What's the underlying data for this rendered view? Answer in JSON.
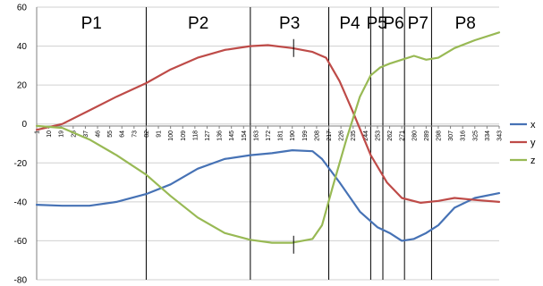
{
  "chart_data": {
    "type": "line",
    "title": "",
    "xlabel": "",
    "ylabel": "",
    "xlim": [
      1,
      343
    ],
    "ylim": [
      -80,
      60
    ],
    "y_ticks": [
      60,
      40,
      20,
      0,
      -20,
      -40,
      -60,
      -80
    ],
    "y_tick_labels": [
      "60",
      "40",
      "20",
      "0",
      "-20",
      "-40",
      "-60",
      "-80"
    ],
    "x_tick_labels": [
      "1",
      "10",
      "19",
      "28",
      "37",
      "46",
      "55",
      "64",
      "73",
      "82",
      "91",
      "100",
      "109",
      "118",
      "127",
      "136",
      "145",
      "154",
      "163",
      "172",
      "181",
      "190",
      "199",
      "208",
      "217",
      "226",
      "235",
      "244",
      "253",
      "262",
      "271",
      "280",
      "289",
      "298",
      "307",
      "316",
      "325",
      "334",
      "343"
    ],
    "grid": "horizontal",
    "legend_position": "right",
    "phases": [
      {
        "label": "P1",
        "start": 1,
        "end": 82
      },
      {
        "label": "P2",
        "start": 82,
        "end": 159
      },
      {
        "label": "P3",
        "start": 159,
        "end": 217
      },
      {
        "label": "P4",
        "start": 217,
        "end": 248
      },
      {
        "label": "P5",
        "start": 248,
        "end": 257
      },
      {
        "label": "P6",
        "start": 257,
        "end": 273
      },
      {
        "label": "P7",
        "start": 273,
        "end": 293
      },
      {
        "label": "P8",
        "start": 293,
        "end": 343
      }
    ],
    "markers": [
      {
        "x": 191,
        "y": 39
      },
      {
        "x": 191,
        "y": -62
      }
    ],
    "series": [
      {
        "name": "x",
        "color": "#4672B5",
        "x": [
          1,
          20,
          40,
          60,
          82,
          100,
          120,
          140,
          159,
          175,
          190,
          205,
          212,
          225,
          240,
          253,
          262,
          271,
          280,
          289,
          298,
          310,
          325,
          343
        ],
        "y": [
          -41.5,
          -42,
          -42,
          -40,
          -36,
          -31,
          -23,
          -18,
          -16,
          -15,
          -13.5,
          -14,
          -18,
          -30,
          -45,
          -53,
          -56,
          -60,
          -59,
          -56,
          -52,
          -43,
          -38,
          -35.5
        ]
      },
      {
        "name": "y",
        "color": "#BE4B48",
        "x": [
          1,
          20,
          40,
          60,
          82,
          100,
          120,
          140,
          159,
          172,
          190,
          205,
          215,
          225,
          235,
          248,
          260,
          271,
          285,
          298,
          310,
          325,
          343
        ],
        "y": [
          -3,
          0,
          7,
          14,
          21,
          28,
          34,
          38,
          40,
          40.5,
          39,
          37,
          34,
          22,
          6,
          -16,
          -30,
          -38,
          -40.5,
          -39.5,
          -38,
          -39,
          -40
        ]
      },
      {
        "name": "z",
        "color": "#98B954",
        "x": [
          1,
          20,
          40,
          60,
          82,
          100,
          120,
          140,
          159,
          175,
          190,
          205,
          212,
          220,
          230,
          240,
          248,
          255,
          262,
          271,
          280,
          289,
          298,
          310,
          325,
          343
        ],
        "y": [
          -1,
          -2,
          -8,
          -16,
          -26,
          -37,
          -48,
          -56,
          -59.5,
          -61,
          -61,
          -59,
          -52,
          -32,
          -8,
          14,
          25,
          29,
          31,
          33,
          35,
          33,
          34,
          39,
          43,
          47
        ]
      }
    ]
  }
}
